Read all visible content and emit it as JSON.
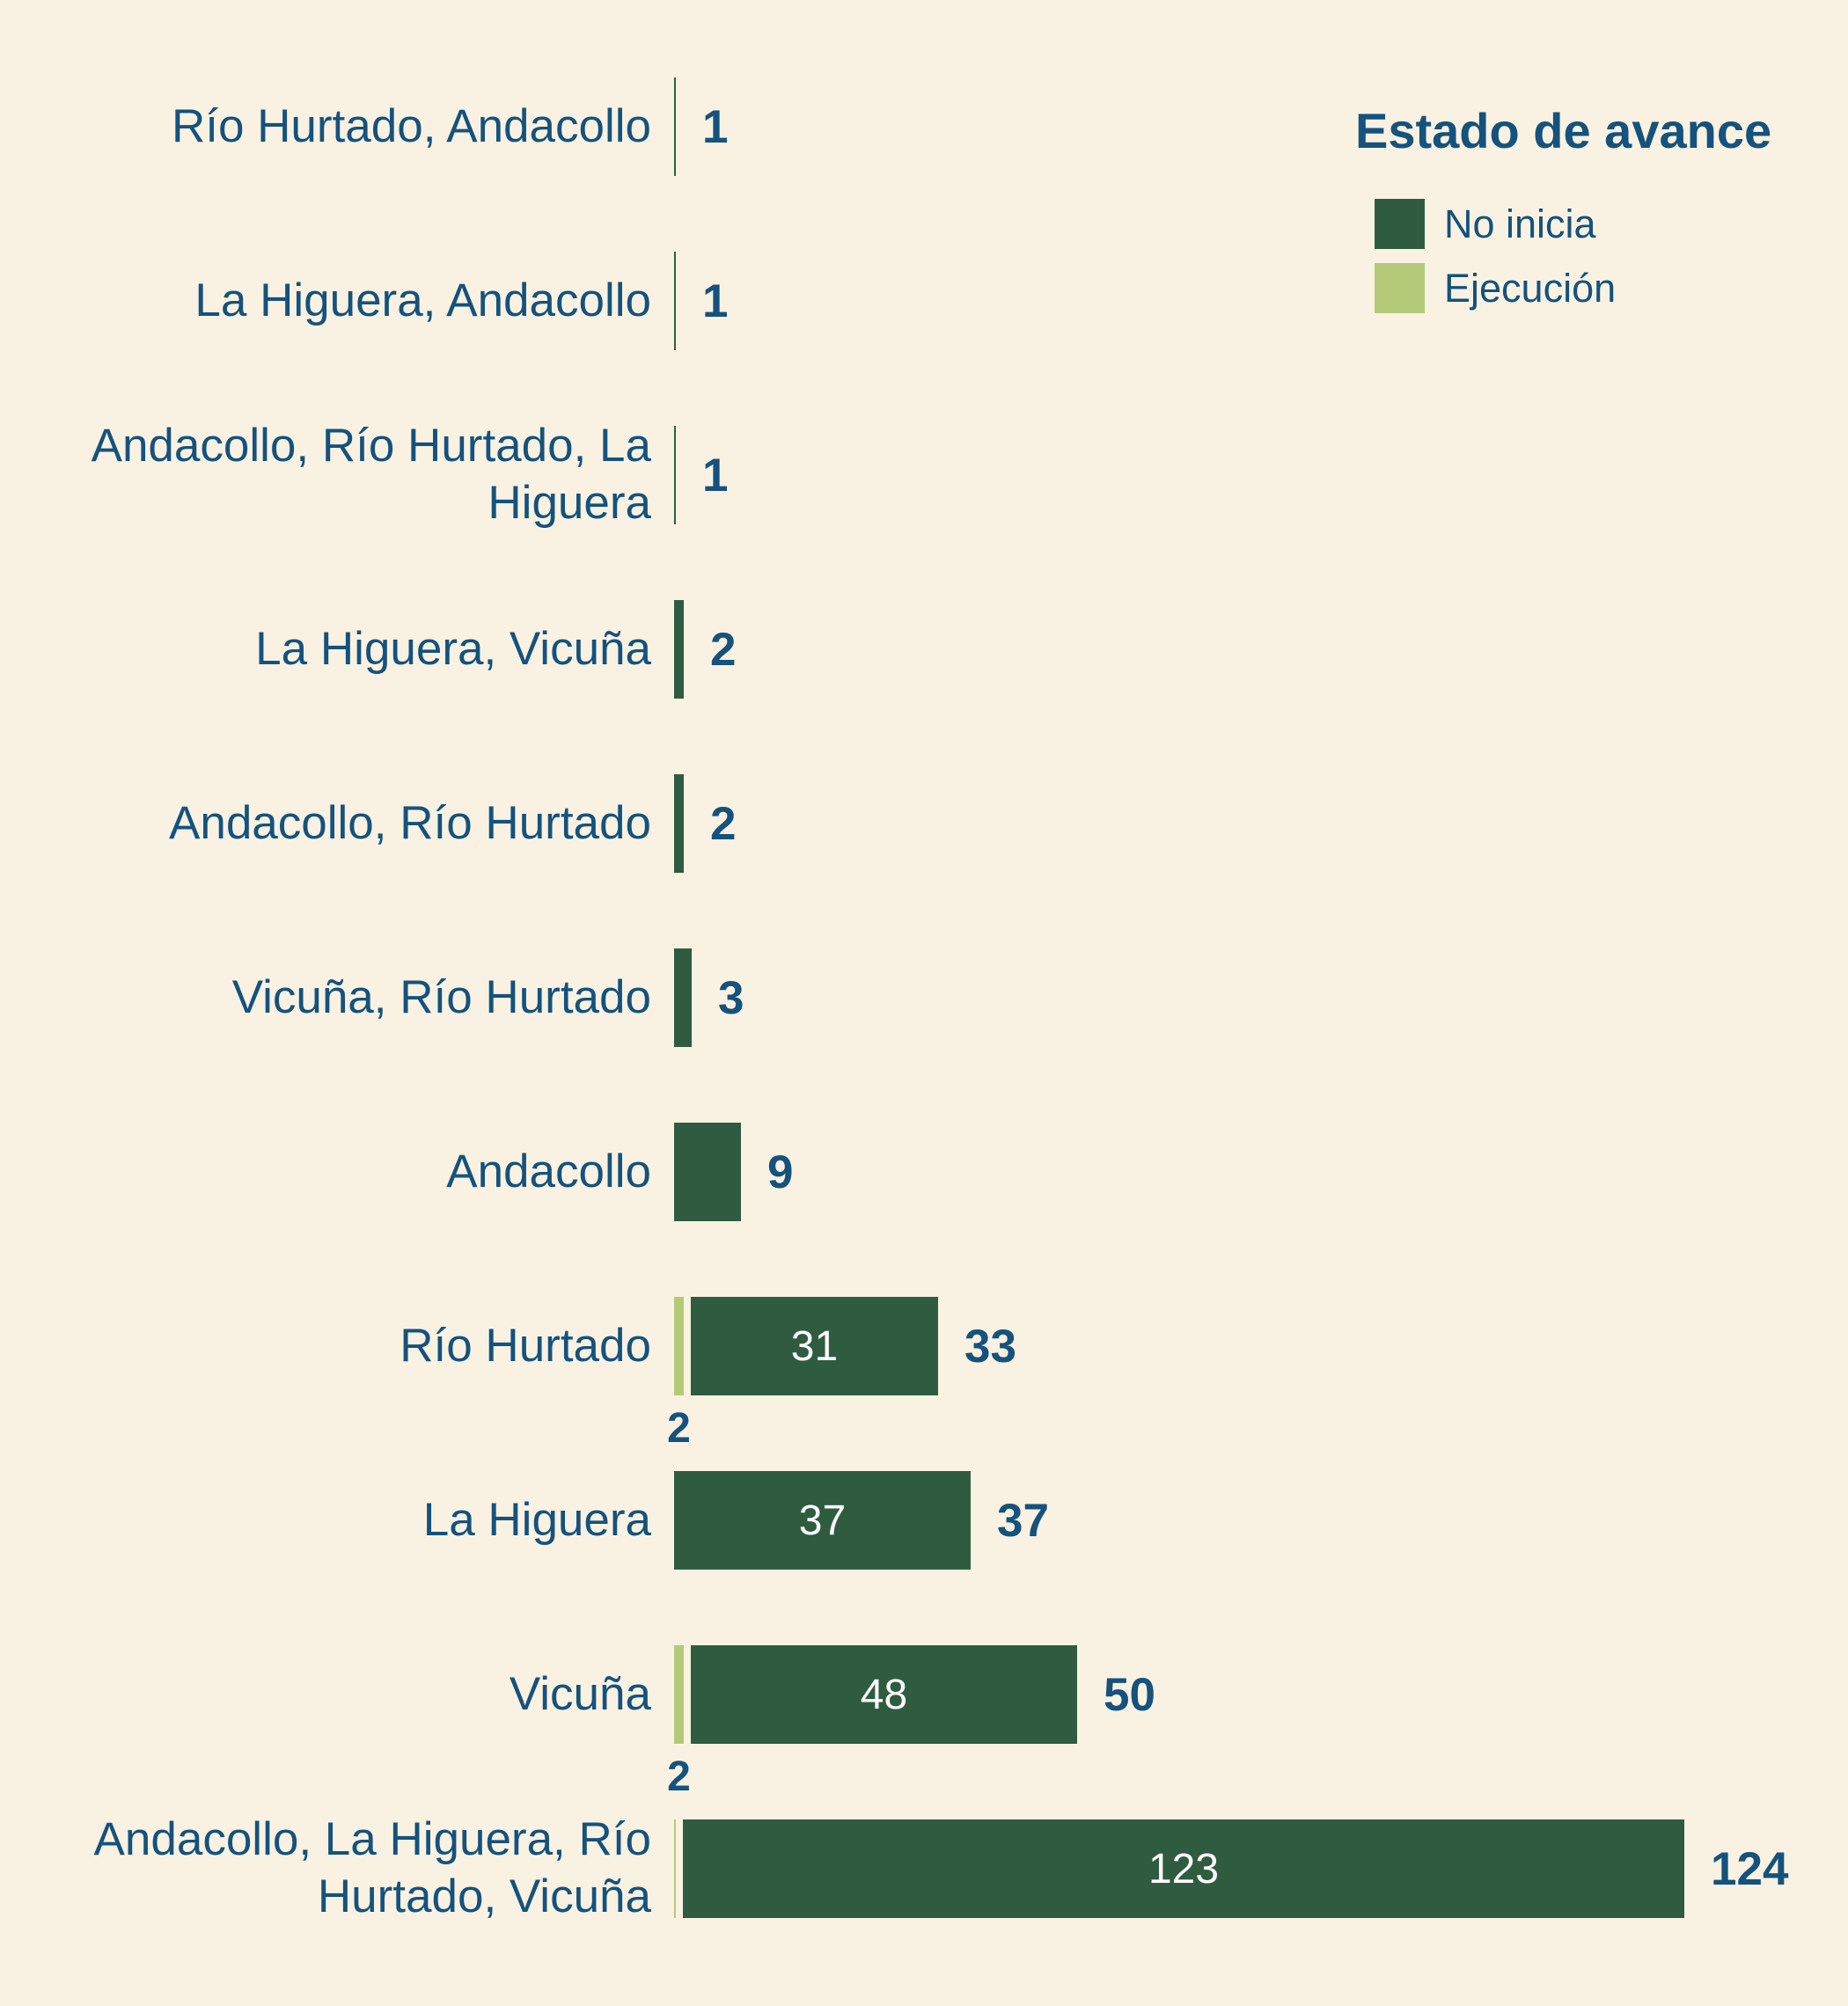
{
  "background": "#F9F2E2",
  "colors": {
    "no_inicia": "#2F5C40",
    "ejecucion": "#B5CA79",
    "text_blue": "#15527D",
    "inside_label": "#FFFFFF"
  },
  "legend": {
    "title": "Estado de avance",
    "items": [
      {
        "label": "No inicia",
        "color": "#2F5C40"
      },
      {
        "label": "Ejecución",
        "color": "#B5CA79"
      }
    ]
  },
  "chart_data": {
    "type": "bar",
    "orientation": "horizontal",
    "stacked": true,
    "grid": false,
    "legend_position": "top-right",
    "categories": [
      "Río Hurtado, Andacollo",
      "La Higuera, Andacollo",
      "Andacollo, Río Hurtado, La Higuera",
      "La Higuera, Vicuña",
      "Andacollo, Río Hurtado",
      "Vicuña, Río Hurtado",
      "Andacollo",
      "Río Hurtado",
      "La Higuera",
      "Vicuña",
      "Andacollo, La Higuera, Río Hurtado, Vicuña"
    ],
    "series": [
      {
        "name": "Ejecución",
        "values": [
          0,
          0,
          0,
          0,
          0,
          0,
          0,
          2,
          0,
          2,
          1
        ]
      },
      {
        "name": "No inicia",
        "values": [
          1,
          1,
          1,
          2,
          2,
          3,
          9,
          31,
          37,
          48,
          123
        ]
      }
    ],
    "totals": [
      1,
      1,
      1,
      2,
      2,
      3,
      9,
      33,
      37,
      50,
      124
    ],
    "xlim": [
      0,
      124
    ],
    "rows": [
      {
        "label": "Río Hurtado, Andacollo",
        "ejecucion": 0,
        "no_inicia": 1,
        "total": "1",
        "inside_label": "",
        "sub_label": ""
      },
      {
        "label": "La Higuera, Andacollo",
        "ejecucion": 0,
        "no_inicia": 1,
        "total": "1",
        "inside_label": "",
        "sub_label": ""
      },
      {
        "label": "Andacollo, Río Hurtado, La Higuera",
        "ejecucion": 0,
        "no_inicia": 1,
        "total": "1",
        "inside_label": "",
        "sub_label": ""
      },
      {
        "label": "La Higuera, Vicuña",
        "ejecucion": 0,
        "no_inicia": 2,
        "total": "2",
        "inside_label": "",
        "sub_label": ""
      },
      {
        "label": "Andacollo, Río Hurtado",
        "ejecucion": 0,
        "no_inicia": 2,
        "total": "2",
        "inside_label": "",
        "sub_label": ""
      },
      {
        "label": "Vicuña, Río Hurtado",
        "ejecucion": 0,
        "no_inicia": 3,
        "total": "3",
        "inside_label": "",
        "sub_label": ""
      },
      {
        "label": "Andacollo",
        "ejecucion": 0,
        "no_inicia": 9,
        "total": "9",
        "inside_label": "",
        "sub_label": ""
      },
      {
        "label": "Río Hurtado",
        "ejecucion": 2,
        "no_inicia": 31,
        "total": "33",
        "inside_label": "31",
        "sub_label": "2"
      },
      {
        "label": "La Higuera",
        "ejecucion": 0,
        "no_inicia": 37,
        "total": "37",
        "inside_label": "37",
        "sub_label": ""
      },
      {
        "label": "Vicuña",
        "ejecucion": 2,
        "no_inicia": 48,
        "total": "50",
        "inside_label": "48",
        "sub_label": "2"
      },
      {
        "label": "Andacollo, La Higuera, Río Hurtado, Vicuña",
        "ejecucion": 1,
        "no_inicia": 123,
        "total": "124",
        "inside_label": "123",
        "sub_label": ""
      }
    ],
    "pixels_per_unit": 9.32
  }
}
